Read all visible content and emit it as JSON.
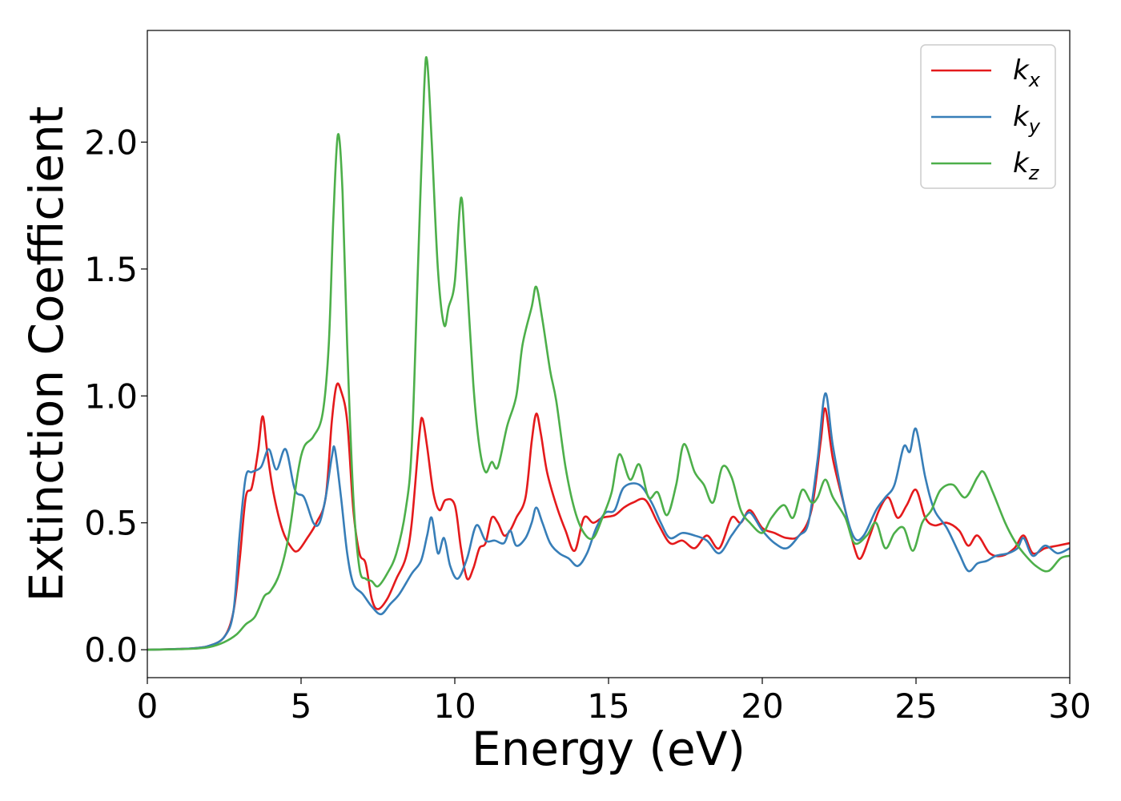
{
  "chart_data": {
    "type": "line",
    "xlabel": "Energy (eV)",
    "ylabel": "Extinction Coefficient",
    "xlim": [
      0,
      30
    ],
    "ylim": [
      -0.11,
      2.44
    ],
    "xticks": [
      0,
      5,
      10,
      15,
      20,
      25,
      30
    ],
    "xtick_labels": [
      "0",
      "5",
      "10",
      "15",
      "20",
      "25",
      "30"
    ],
    "yticks": [
      0.0,
      0.5,
      1.0,
      1.5,
      2.0
    ],
    "ytick_labels": [
      "0.0",
      "0.5",
      "1.0",
      "1.5",
      "2.0"
    ],
    "grid": false,
    "legend_position": "top-right",
    "series": [
      {
        "name": "k",
        "subscript": "x",
        "color": "#e41a1c",
        "points": [
          [
            0,
            0
          ],
          [
            1,
            0.003
          ],
          [
            1.5,
            0.006
          ],
          [
            2,
            0.015
          ],
          [
            2.5,
            0.05
          ],
          [
            2.8,
            0.15
          ],
          [
            3.0,
            0.35
          ],
          [
            3.2,
            0.6
          ],
          [
            3.4,
            0.64
          ],
          [
            3.6,
            0.78
          ],
          [
            3.75,
            0.92
          ],
          [
            3.9,
            0.78
          ],
          [
            4.1,
            0.62
          ],
          [
            4.4,
            0.47
          ],
          [
            4.7,
            0.4
          ],
          [
            4.9,
            0.39
          ],
          [
            5.2,
            0.44
          ],
          [
            5.5,
            0.5
          ],
          [
            5.8,
            0.6
          ],
          [
            6.0,
            0.9
          ],
          [
            6.15,
            1.04
          ],
          [
            6.3,
            1.02
          ],
          [
            6.5,
            0.9
          ],
          [
            6.7,
            0.55
          ],
          [
            6.9,
            0.38
          ],
          [
            7.1,
            0.34
          ],
          [
            7.3,
            0.2
          ],
          [
            7.5,
            0.16
          ],
          [
            7.8,
            0.2
          ],
          [
            8.1,
            0.28
          ],
          [
            8.4,
            0.36
          ],
          [
            8.6,
            0.5
          ],
          [
            8.85,
            0.85
          ],
          [
            8.95,
            0.91
          ],
          [
            9.1,
            0.8
          ],
          [
            9.3,
            0.62
          ],
          [
            9.5,
            0.55
          ],
          [
            9.7,
            0.59
          ],
          [
            10.0,
            0.57
          ],
          [
            10.2,
            0.4
          ],
          [
            10.4,
            0.28
          ],
          [
            10.6,
            0.32
          ],
          [
            10.8,
            0.4
          ],
          [
            11.0,
            0.42
          ],
          [
            11.2,
            0.52
          ],
          [
            11.4,
            0.5
          ],
          [
            11.6,
            0.45
          ],
          [
            11.8,
            0.47
          ],
          [
            12.0,
            0.52
          ],
          [
            12.3,
            0.6
          ],
          [
            12.5,
            0.82
          ],
          [
            12.65,
            0.93
          ],
          [
            12.8,
            0.85
          ],
          [
            13.0,
            0.7
          ],
          [
            13.3,
            0.57
          ],
          [
            13.6,
            0.47
          ],
          [
            13.9,
            0.39
          ],
          [
            14.2,
            0.52
          ],
          [
            14.5,
            0.5
          ],
          [
            14.8,
            0.52
          ],
          [
            15.2,
            0.53
          ],
          [
            15.5,
            0.56
          ],
          [
            15.8,
            0.58
          ],
          [
            16.2,
            0.59
          ],
          [
            16.6,
            0.5
          ],
          [
            17.0,
            0.42
          ],
          [
            17.4,
            0.43
          ],
          [
            17.8,
            0.4
          ],
          [
            18.2,
            0.45
          ],
          [
            18.6,
            0.4
          ],
          [
            19.0,
            0.52
          ],
          [
            19.3,
            0.5
          ],
          [
            19.6,
            0.55
          ],
          [
            20.0,
            0.48
          ],
          [
            20.4,
            0.46
          ],
          [
            20.8,
            0.44
          ],
          [
            21.2,
            0.45
          ],
          [
            21.6,
            0.55
          ],
          [
            21.9,
            0.82
          ],
          [
            22.05,
            0.95
          ],
          [
            22.3,
            0.75
          ],
          [
            22.7,
            0.55
          ],
          [
            23.0,
            0.4
          ],
          [
            23.2,
            0.36
          ],
          [
            23.5,
            0.45
          ],
          [
            23.8,
            0.55
          ],
          [
            24.1,
            0.6
          ],
          [
            24.4,
            0.52
          ],
          [
            24.7,
            0.57
          ],
          [
            25.0,
            0.63
          ],
          [
            25.3,
            0.52
          ],
          [
            25.6,
            0.49
          ],
          [
            26.0,
            0.5
          ],
          [
            26.4,
            0.47
          ],
          [
            26.7,
            0.41
          ],
          [
            27.0,
            0.45
          ],
          [
            27.4,
            0.38
          ],
          [
            27.8,
            0.37
          ],
          [
            28.2,
            0.4
          ],
          [
            28.5,
            0.45
          ],
          [
            28.8,
            0.38
          ],
          [
            29.2,
            0.4
          ],
          [
            29.6,
            0.41
          ],
          [
            30,
            0.42
          ]
        ]
      },
      {
        "name": "k",
        "subscript": "y",
        "color": "#377eb8",
        "points": [
          [
            0,
            0
          ],
          [
            1,
            0.003
          ],
          [
            1.5,
            0.006
          ],
          [
            2,
            0.015
          ],
          [
            2.5,
            0.05
          ],
          [
            2.8,
            0.15
          ],
          [
            3.0,
            0.45
          ],
          [
            3.2,
            0.68
          ],
          [
            3.4,
            0.7
          ],
          [
            3.7,
            0.72
          ],
          [
            3.95,
            0.79
          ],
          [
            4.2,
            0.71
          ],
          [
            4.5,
            0.79
          ],
          [
            4.8,
            0.63
          ],
          [
            5.1,
            0.6
          ],
          [
            5.4,
            0.5
          ],
          [
            5.6,
            0.5
          ],
          [
            5.8,
            0.6
          ],
          [
            6.0,
            0.76
          ],
          [
            6.1,
            0.79
          ],
          [
            6.3,
            0.6
          ],
          [
            6.5,
            0.38
          ],
          [
            6.7,
            0.26
          ],
          [
            7.0,
            0.22
          ],
          [
            7.3,
            0.17
          ],
          [
            7.6,
            0.14
          ],
          [
            7.9,
            0.18
          ],
          [
            8.2,
            0.22
          ],
          [
            8.6,
            0.3
          ],
          [
            8.9,
            0.35
          ],
          [
            9.1,
            0.45
          ],
          [
            9.25,
            0.52
          ],
          [
            9.45,
            0.38
          ],
          [
            9.65,
            0.44
          ],
          [
            9.85,
            0.33
          ],
          [
            10.1,
            0.28
          ],
          [
            10.4,
            0.36
          ],
          [
            10.7,
            0.49
          ],
          [
            11.0,
            0.43
          ],
          [
            11.3,
            0.43
          ],
          [
            11.6,
            0.42
          ],
          [
            11.8,
            0.47
          ],
          [
            12.0,
            0.41
          ],
          [
            12.3,
            0.44
          ],
          [
            12.5,
            0.5
          ],
          [
            12.65,
            0.56
          ],
          [
            12.85,
            0.5
          ],
          [
            13.1,
            0.42
          ],
          [
            13.4,
            0.38
          ],
          [
            13.7,
            0.36
          ],
          [
            14.0,
            0.33
          ],
          [
            14.3,
            0.38
          ],
          [
            14.6,
            0.48
          ],
          [
            14.9,
            0.54
          ],
          [
            15.2,
            0.55
          ],
          [
            15.5,
            0.64
          ],
          [
            16.0,
            0.65
          ],
          [
            16.4,
            0.58
          ],
          [
            16.7,
            0.5
          ],
          [
            17.0,
            0.44
          ],
          [
            17.4,
            0.46
          ],
          [
            17.8,
            0.45
          ],
          [
            18.2,
            0.43
          ],
          [
            18.6,
            0.38
          ],
          [
            19.0,
            0.45
          ],
          [
            19.3,
            0.5
          ],
          [
            19.6,
            0.54
          ],
          [
            20.0,
            0.47
          ],
          [
            20.4,
            0.42
          ],
          [
            20.8,
            0.4
          ],
          [
            21.2,
            0.45
          ],
          [
            21.5,
            0.5
          ],
          [
            21.8,
            0.75
          ],
          [
            22.05,
            1.01
          ],
          [
            22.3,
            0.8
          ],
          [
            22.7,
            0.55
          ],
          [
            23.0,
            0.44
          ],
          [
            23.3,
            0.45
          ],
          [
            23.7,
            0.55
          ],
          [
            24.0,
            0.6
          ],
          [
            24.3,
            0.65
          ],
          [
            24.6,
            0.8
          ],
          [
            24.8,
            0.78
          ],
          [
            25.0,
            0.87
          ],
          [
            25.3,
            0.68
          ],
          [
            25.6,
            0.55
          ],
          [
            26.0,
            0.48
          ],
          [
            26.4,
            0.38
          ],
          [
            26.7,
            0.31
          ],
          [
            27.0,
            0.34
          ],
          [
            27.3,
            0.35
          ],
          [
            27.6,
            0.37
          ],
          [
            28.0,
            0.38
          ],
          [
            28.3,
            0.4
          ],
          [
            28.5,
            0.44
          ],
          [
            28.8,
            0.37
          ],
          [
            29.2,
            0.41
          ],
          [
            29.6,
            0.38
          ],
          [
            30,
            0.4
          ]
        ]
      },
      {
        "name": "k",
        "subscript": "z",
        "color": "#4daf4a",
        "points": [
          [
            0,
            0
          ],
          [
            1,
            0.002
          ],
          [
            1.5,
            0.004
          ],
          [
            2,
            0.01
          ],
          [
            2.5,
            0.03
          ],
          [
            2.9,
            0.06
          ],
          [
            3.2,
            0.1
          ],
          [
            3.5,
            0.13
          ],
          [
            3.8,
            0.21
          ],
          [
            4.0,
            0.23
          ],
          [
            4.3,
            0.3
          ],
          [
            4.6,
            0.45
          ],
          [
            4.9,
            0.7
          ],
          [
            5.1,
            0.8
          ],
          [
            5.4,
            0.84
          ],
          [
            5.7,
            0.93
          ],
          [
            5.9,
            1.2
          ],
          [
            6.05,
            1.7
          ],
          [
            6.2,
            2.03
          ],
          [
            6.35,
            1.8
          ],
          [
            6.5,
            1.2
          ],
          [
            6.7,
            0.6
          ],
          [
            6.9,
            0.32
          ],
          [
            7.1,
            0.28
          ],
          [
            7.3,
            0.27
          ],
          [
            7.5,
            0.25
          ],
          [
            7.8,
            0.3
          ],
          [
            8.1,
            0.38
          ],
          [
            8.4,
            0.55
          ],
          [
            8.6,
            0.8
          ],
          [
            8.8,
            1.5
          ],
          [
            9.0,
            2.2
          ],
          [
            9.1,
            2.32
          ],
          [
            9.25,
            2.0
          ],
          [
            9.45,
            1.5
          ],
          [
            9.65,
            1.28
          ],
          [
            9.8,
            1.35
          ],
          [
            10.0,
            1.45
          ],
          [
            10.2,
            1.78
          ],
          [
            10.35,
            1.55
          ],
          [
            10.6,
            1.05
          ],
          [
            10.8,
            0.8
          ],
          [
            11.0,
            0.7
          ],
          [
            11.2,
            0.74
          ],
          [
            11.4,
            0.72
          ],
          [
            11.7,
            0.88
          ],
          [
            12.0,
            1.0
          ],
          [
            12.2,
            1.2
          ],
          [
            12.5,
            1.35
          ],
          [
            12.65,
            1.43
          ],
          [
            12.85,
            1.3
          ],
          [
            13.1,
            1.1
          ],
          [
            13.3,
            0.98
          ],
          [
            13.6,
            0.72
          ],
          [
            13.9,
            0.55
          ],
          [
            14.2,
            0.46
          ],
          [
            14.5,
            0.44
          ],
          [
            14.8,
            0.52
          ],
          [
            15.1,
            0.62
          ],
          [
            15.35,
            0.77
          ],
          [
            15.7,
            0.67
          ],
          [
            16.0,
            0.73
          ],
          [
            16.3,
            0.6
          ],
          [
            16.6,
            0.62
          ],
          [
            16.9,
            0.53
          ],
          [
            17.2,
            0.65
          ],
          [
            17.45,
            0.81
          ],
          [
            17.8,
            0.7
          ],
          [
            18.1,
            0.65
          ],
          [
            18.4,
            0.58
          ],
          [
            18.7,
            0.72
          ],
          [
            19.0,
            0.68
          ],
          [
            19.3,
            0.55
          ],
          [
            19.6,
            0.5
          ],
          [
            20.0,
            0.46
          ],
          [
            20.3,
            0.52
          ],
          [
            20.7,
            0.57
          ],
          [
            21.0,
            0.52
          ],
          [
            21.3,
            0.63
          ],
          [
            21.6,
            0.58
          ],
          [
            21.8,
            0.6
          ],
          [
            22.05,
            0.67
          ],
          [
            22.3,
            0.6
          ],
          [
            22.7,
            0.52
          ],
          [
            23.0,
            0.42
          ],
          [
            23.4,
            0.45
          ],
          [
            23.7,
            0.5
          ],
          [
            24.0,
            0.4
          ],
          [
            24.3,
            0.46
          ],
          [
            24.6,
            0.48
          ],
          [
            24.9,
            0.39
          ],
          [
            25.2,
            0.5
          ],
          [
            25.5,
            0.55
          ],
          [
            25.8,
            0.63
          ],
          [
            26.2,
            0.65
          ],
          [
            26.6,
            0.6
          ],
          [
            27.0,
            0.68
          ],
          [
            27.2,
            0.7
          ],
          [
            27.5,
            0.62
          ],
          [
            27.9,
            0.5
          ],
          [
            28.2,
            0.43
          ],
          [
            28.5,
            0.38
          ],
          [
            28.9,
            0.33
          ],
          [
            29.3,
            0.31
          ],
          [
            29.7,
            0.36
          ],
          [
            30,
            0.37
          ]
        ]
      }
    ]
  }
}
